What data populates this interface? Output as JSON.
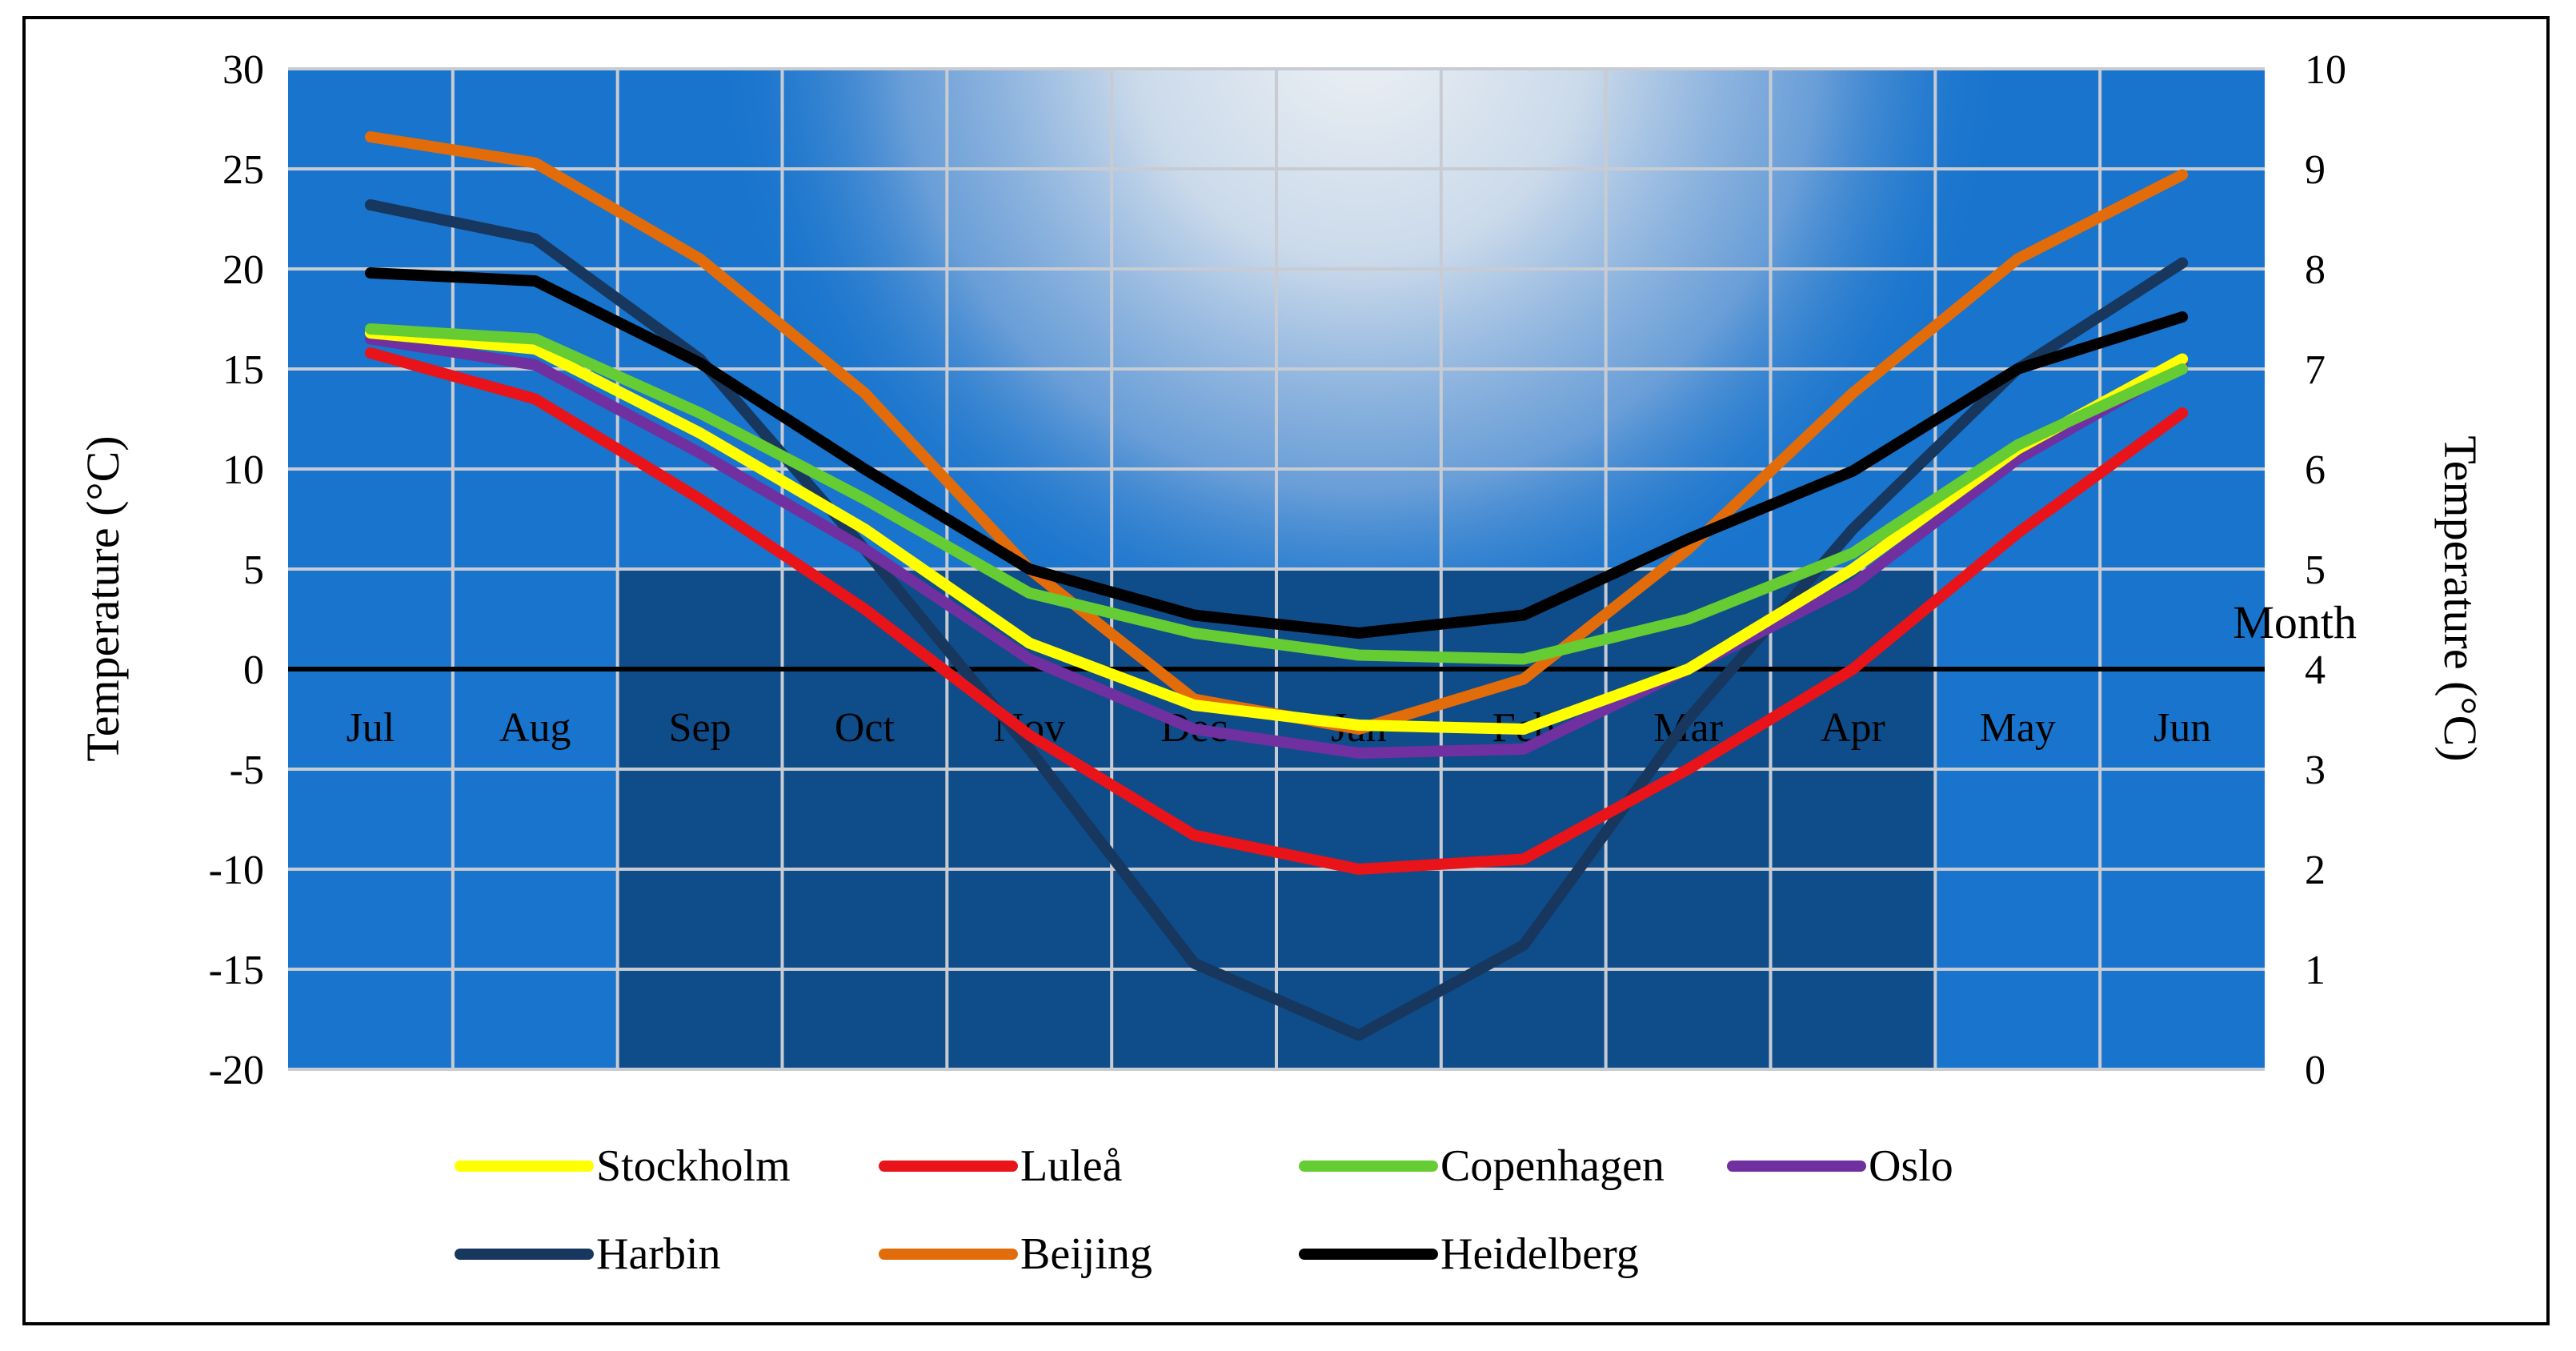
{
  "chart_data": {
    "type": "line",
    "title": "",
    "xlabel": "Month",
    "ylabel": "Temperature (°C)",
    "y2label": "Temperature (°C)",
    "categories": [
      "Jul",
      "Aug",
      "Sep",
      "Oct",
      "Nov",
      "Dec",
      "Jan",
      "Feb",
      "Mar",
      "Apr",
      "May",
      "Jun"
    ],
    "ylim": [
      -20,
      30
    ],
    "y2lim": [
      0,
      10
    ],
    "yticks": [
      "30",
      "25",
      "20",
      "15",
      "10",
      "5",
      "0",
      "-5",
      "-10",
      "-15",
      "-20"
    ],
    "y2ticks": [
      "10",
      "9",
      "8",
      "7",
      "6",
      "5",
      "4",
      "3",
      "2",
      "1",
      "0"
    ],
    "colors": {
      "panel_light": "#1874CD",
      "panel_dark": "#0F4C8A",
      "glow": "#EEF1F4",
      "grid": "#C8CCD2",
      "zero_line": "#000000"
    },
    "series": [
      {
        "name": "Harbin",
        "color": "#17375E",
        "values": [
          23.2,
          21.5,
          15.5,
          6.0,
          -4.0,
          -14.7,
          -18.3,
          -13.8,
          -2.5,
          7.0,
          15.0,
          20.3
        ]
      },
      {
        "name": "Beijing",
        "color": "#E36C0A",
        "values": [
          26.6,
          25.3,
          20.5,
          13.8,
          5.0,
          -1.5,
          -3.0,
          -0.5,
          6.0,
          13.8,
          20.5,
          24.7
        ]
      },
      {
        "name": "Luleå",
        "color": "#E8141A",
        "values": [
          15.8,
          13.5,
          8.5,
          3.0,
          -3.3,
          -8.3,
          -10.0,
          -9.5,
          -5.0,
          0.0,
          6.8,
          12.8
        ]
      },
      {
        "name": "Oslo",
        "color": "#7030A0",
        "values": [
          16.5,
          15.2,
          10.8,
          6.0,
          0.5,
          -3.0,
          -4.2,
          -4.0,
          0.0,
          4.2,
          10.5,
          15.2
        ]
      },
      {
        "name": "Stockholm",
        "color": "#FFFF00",
        "values": [
          16.8,
          16.0,
          11.8,
          7.0,
          1.3,
          -1.8,
          -2.8,
          -3.0,
          0.0,
          5.0,
          11.0,
          15.5
        ]
      },
      {
        "name": "Copenhagen",
        "color": "#66CC33",
        "values": [
          17.0,
          16.5,
          12.8,
          8.5,
          3.8,
          1.8,
          0.7,
          0.5,
          2.5,
          5.8,
          11.2,
          15.0
        ]
      },
      {
        "name": "Heidelberg",
        "color": "#000000",
        "values": [
          19.8,
          19.4,
          15.3,
          10.0,
          5.0,
          2.7,
          1.8,
          2.7,
          6.5,
          9.9,
          15.0,
          17.6
        ]
      }
    ],
    "legend": {
      "position": "bottom",
      "rows": [
        [
          "Stockholm",
          "Luleå",
          "Copenhagen",
          "Oslo"
        ],
        [
          "Harbin",
          "Beijing",
          "Heidelberg"
        ]
      ]
    }
  }
}
